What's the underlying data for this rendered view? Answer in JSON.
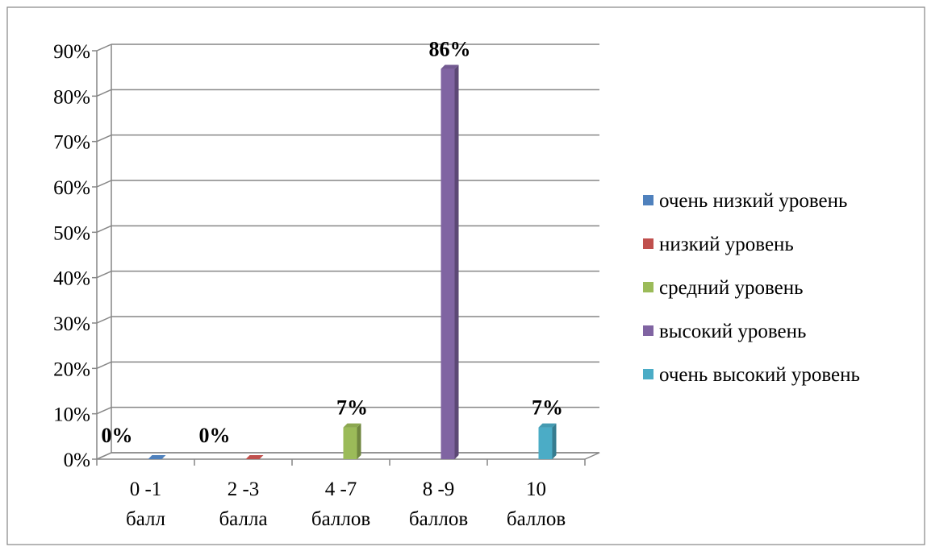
{
  "chart_data": {
    "type": "bar",
    "categories": [
      [
        "0 -1",
        "балл"
      ],
      [
        "2 -3",
        "балла"
      ],
      [
        "4 -7",
        "баллов"
      ],
      [
        "8 -9",
        "баллов"
      ],
      [
        "10",
        "баллов"
      ]
    ],
    "series": [
      {
        "name": "очень низкий уровень",
        "values": [
          0,
          null,
          null,
          null,
          null
        ],
        "color": "#4F81BD"
      },
      {
        "name": "низкий уровень",
        "values": [
          null,
          0,
          null,
          null,
          null
        ],
        "color": "#C0504D"
      },
      {
        "name": "средний уровень",
        "values": [
          null,
          null,
          7,
          null,
          null
        ],
        "color": "#9BBB59"
      },
      {
        "name": "высокий уровень",
        "values": [
          null,
          null,
          null,
          86,
          null
        ],
        "color": "#8064A2"
      },
      {
        "name": "очень высокий уровень",
        "values": [
          null,
          null,
          null,
          null,
          7
        ],
        "color": "#4BACC6"
      }
    ],
    "data_labels": [
      "0%",
      "0%",
      "7%",
      "86%",
      "7%"
    ],
    "y_ticks": [
      "0%",
      "10%",
      "20%",
      "30%",
      "40%",
      "50%",
      "60%",
      "70%",
      "80%",
      "90%"
    ],
    "ylim": [
      0,
      90
    ],
    "grid": true,
    "legend": "right",
    "title": "",
    "xlabel": "",
    "ylabel": ""
  }
}
